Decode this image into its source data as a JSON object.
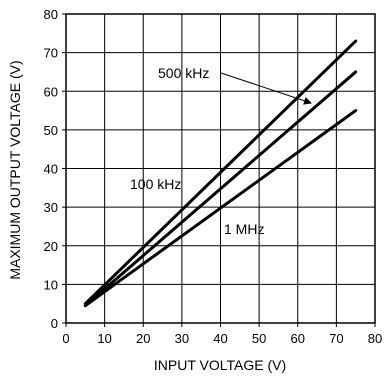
{
  "chart_data": {
    "type": "line",
    "xlabel": "INPUT VOLTAGE (V)",
    "ylabel": "MAXIMUM OUTPUT VOLTAGE (V)",
    "xlim": [
      0,
      80
    ],
    "ylim": [
      0,
      80
    ],
    "xticks": [
      "0",
      "10",
      "20",
      "30",
      "40",
      "50",
      "60",
      "70",
      "80"
    ],
    "yticks": [
      "0",
      "10",
      "20",
      "30",
      "40",
      "50",
      "60",
      "70",
      "80"
    ],
    "grid": true,
    "series": [
      {
        "name": "500 kHz",
        "x": [
          5,
          75
        ],
        "y": [
          5,
          73
        ]
      },
      {
        "name": "100 kHz",
        "x": [
          5,
          75
        ],
        "y": [
          4.5,
          65
        ]
      },
      {
        "name": "1 MHz",
        "x": [
          5,
          75
        ],
        "y": [
          4.5,
          55
        ]
      }
    ],
    "annotations": [
      {
        "text": "500 kHz"
      },
      {
        "text": "100 kHz"
      },
      {
        "text": "1 MHz"
      }
    ]
  }
}
